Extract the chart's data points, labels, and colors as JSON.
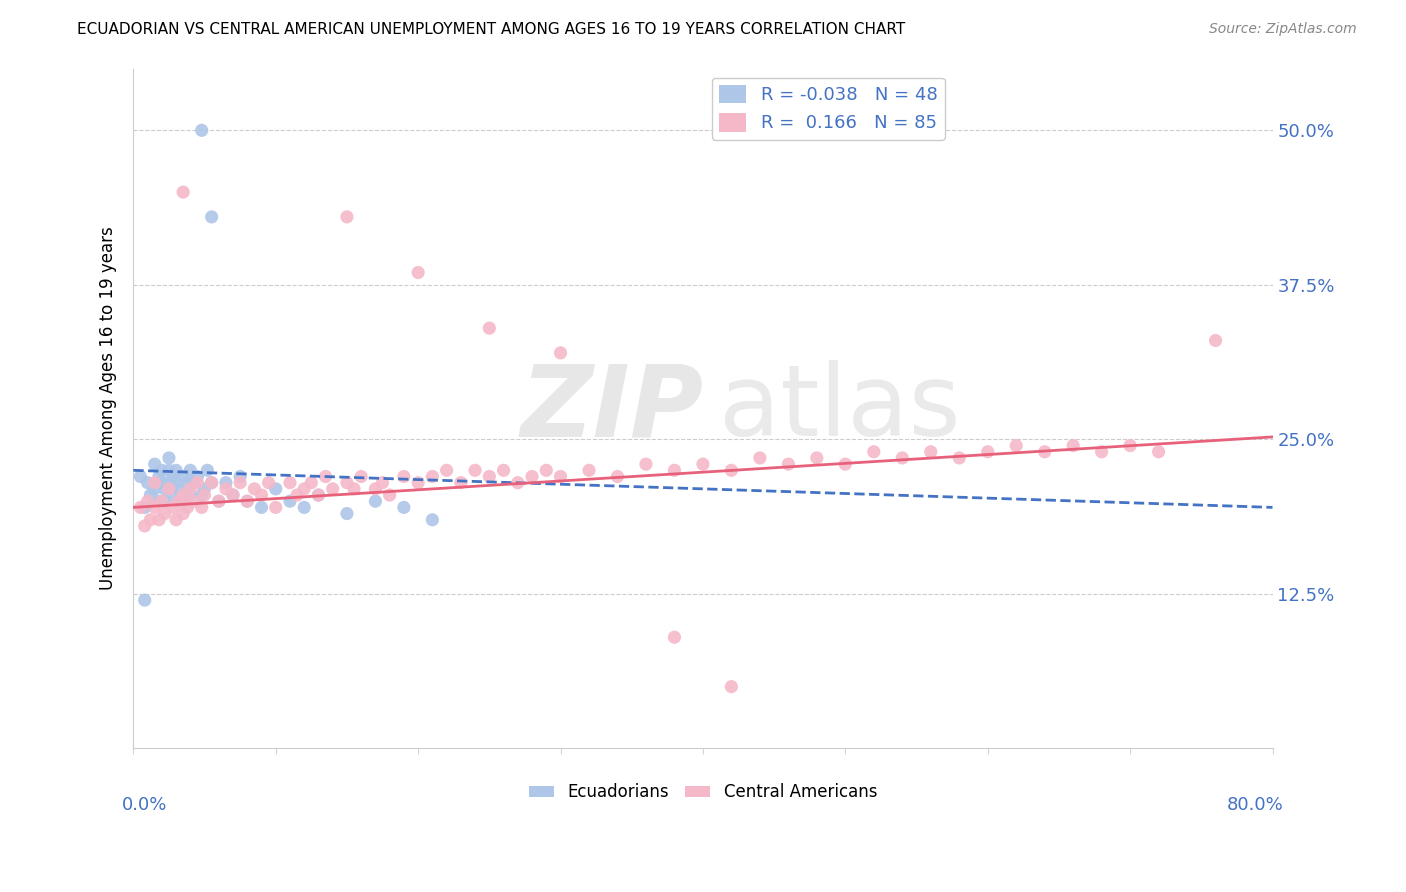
{
  "title": "ECUADORIAN VS CENTRAL AMERICAN UNEMPLOYMENT AMONG AGES 16 TO 19 YEARS CORRELATION CHART",
  "source": "Source: ZipAtlas.com",
  "ylabel": "Unemployment Among Ages 16 to 19 years",
  "xlim": [
    0.0,
    0.8
  ],
  "ylim": [
    0.0,
    0.55
  ],
  "yticks": [
    0.125,
    0.25,
    0.375,
    0.5
  ],
  "ytick_labels": [
    "12.5%",
    "25.0%",
    "37.5%",
    "50.0%"
  ],
  "blue_color": "#aec6e8",
  "pink_color": "#f5b8c8",
  "blue_line_color": "#4472c4",
  "pink_line_color": "#e8617a",
  "R_blue": -0.038,
  "N_blue": 48,
  "R_pink": 0.166,
  "N_pink": 85,
  "blue_x": [
    0.005,
    0.008,
    0.01,
    0.012,
    0.015,
    0.015,
    0.018,
    0.018,
    0.02,
    0.02,
    0.022,
    0.022,
    0.025,
    0.025,
    0.025,
    0.028,
    0.028,
    0.03,
    0.03,
    0.032,
    0.035,
    0.035,
    0.038,
    0.04,
    0.04,
    0.042,
    0.045,
    0.048,
    0.05,
    0.052,
    0.055,
    0.06,
    0.065,
    0.07,
    0.075,
    0.08,
    0.09,
    0.1,
    0.11,
    0.12,
    0.13,
    0.15,
    0.17,
    0.19,
    0.21,
    0.048,
    0.055,
    0.008
  ],
  "blue_y": [
    0.22,
    0.195,
    0.215,
    0.205,
    0.23,
    0.21,
    0.2,
    0.22,
    0.215,
    0.225,
    0.2,
    0.21,
    0.225,
    0.215,
    0.235,
    0.205,
    0.22,
    0.215,
    0.225,
    0.21,
    0.22,
    0.2,
    0.215,
    0.225,
    0.205,
    0.215,
    0.22,
    0.205,
    0.21,
    0.225,
    0.215,
    0.2,
    0.215,
    0.205,
    0.22,
    0.2,
    0.195,
    0.21,
    0.2,
    0.195,
    0.205,
    0.19,
    0.2,
    0.195,
    0.185,
    0.5,
    0.43,
    0.12
  ],
  "pink_x": [
    0.005,
    0.008,
    0.01,
    0.012,
    0.015,
    0.015,
    0.018,
    0.02,
    0.022,
    0.025,
    0.028,
    0.03,
    0.032,
    0.035,
    0.035,
    0.038,
    0.04,
    0.042,
    0.045,
    0.048,
    0.05,
    0.055,
    0.06,
    0.065,
    0.07,
    0.075,
    0.08,
    0.085,
    0.09,
    0.095,
    0.1,
    0.11,
    0.115,
    0.12,
    0.125,
    0.13,
    0.135,
    0.14,
    0.15,
    0.155,
    0.16,
    0.17,
    0.175,
    0.18,
    0.19,
    0.2,
    0.21,
    0.22,
    0.23,
    0.24,
    0.25,
    0.26,
    0.27,
    0.28,
    0.29,
    0.3,
    0.32,
    0.34,
    0.36,
    0.38,
    0.4,
    0.42,
    0.44,
    0.46,
    0.48,
    0.5,
    0.52,
    0.54,
    0.56,
    0.58,
    0.6,
    0.62,
    0.64,
    0.66,
    0.68,
    0.7,
    0.72,
    0.15,
    0.2,
    0.25,
    0.3,
    0.38,
    0.42,
    0.76,
    0.035
  ],
  "pink_y": [
    0.195,
    0.18,
    0.2,
    0.185,
    0.215,
    0.195,
    0.185,
    0.2,
    0.19,
    0.21,
    0.195,
    0.185,
    0.2,
    0.19,
    0.205,
    0.195,
    0.21,
    0.2,
    0.215,
    0.195,
    0.205,
    0.215,
    0.2,
    0.21,
    0.205,
    0.215,
    0.2,
    0.21,
    0.205,
    0.215,
    0.195,
    0.215,
    0.205,
    0.21,
    0.215,
    0.205,
    0.22,
    0.21,
    0.215,
    0.21,
    0.22,
    0.21,
    0.215,
    0.205,
    0.22,
    0.215,
    0.22,
    0.225,
    0.215,
    0.225,
    0.22,
    0.225,
    0.215,
    0.22,
    0.225,
    0.22,
    0.225,
    0.22,
    0.23,
    0.225,
    0.23,
    0.225,
    0.235,
    0.23,
    0.235,
    0.23,
    0.24,
    0.235,
    0.24,
    0.235,
    0.24,
    0.245,
    0.24,
    0.245,
    0.24,
    0.245,
    0.24,
    0.43,
    0.385,
    0.34,
    0.32,
    0.09,
    0.05,
    0.33,
    0.45
  ]
}
